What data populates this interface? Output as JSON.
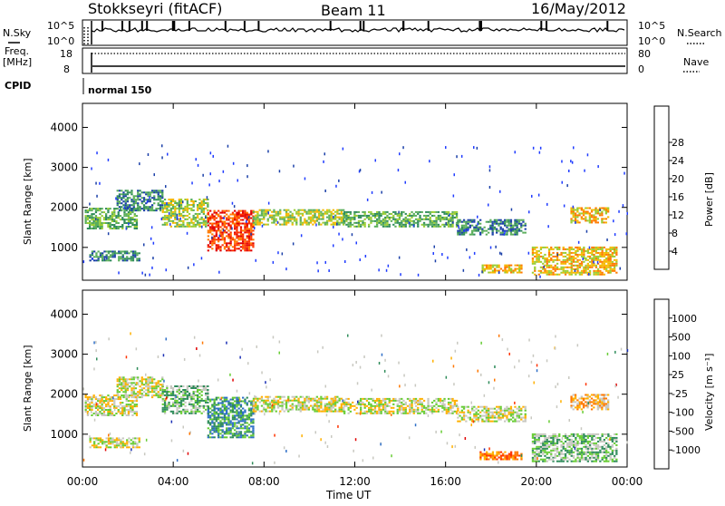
{
  "header": {
    "station": "Stokkseyri (fitACF)",
    "beam": "Beam 11",
    "date": "16/May/2012"
  },
  "top_panels": {
    "nsky_label": "N.Sky",
    "nsky_ticks": [
      "10^5",
      "10^0"
    ],
    "nsearch_label": "N.Search",
    "nsearch_ticks": [
      "10^5",
      "10^0"
    ],
    "freq_label": "Freq.",
    "freq_unit": "[MHz]",
    "freq_ticks": [
      "18",
      "8"
    ],
    "nave_label": "Nave",
    "nave_ticks": [
      "80",
      "0"
    ],
    "cpid_label": "CPID",
    "cpid_value": "normal 150"
  },
  "chart_data": [
    {
      "type": "heatmap",
      "title": "",
      "ylabel": "Slant Range [km]",
      "xlabel": "",
      "x_ticks": [
        "00:00",
        "04:00",
        "08:00",
        "12:00",
        "16:00",
        "20:00",
        "00:00"
      ],
      "x_range_hours": [
        0,
        24
      ],
      "y_ticks": [
        "1000",
        "2000",
        "3000",
        "4000"
      ],
      "y_range_km": [
        180,
        4600
      ],
      "colorbar": {
        "label": "Power [dB]",
        "ticks": [
          "4",
          "8",
          "12",
          "16",
          "20",
          "24",
          "28"
        ],
        "range": [
          0,
          30
        ],
        "colors": [
          "#1f3bff",
          "#1a3fa8",
          "#2f8c5a",
          "#5aae5a",
          "#9acd32",
          "#f5b800",
          "#ff7a00",
          "#ff3300",
          "#e00000"
        ]
      },
      "echo_bands": [
        {
          "t0": 0.1,
          "t1": 2.4,
          "r0": 1450,
          "r1": 1950,
          "level": 3
        },
        {
          "t0": 1.5,
          "t1": 3.5,
          "r0": 1900,
          "r1": 2400,
          "level": 2
        },
        {
          "t0": 3.5,
          "t1": 5.5,
          "r0": 1500,
          "r1": 2200,
          "level": 4
        },
        {
          "t0": 5.5,
          "t1": 7.5,
          "r0": 900,
          "r1": 1900,
          "level": 7
        },
        {
          "t0": 7.5,
          "t1": 11.5,
          "r0": 1550,
          "r1": 1950,
          "level": 4
        },
        {
          "t0": 11.5,
          "t1": 16.5,
          "r0": 1500,
          "r1": 1900,
          "level": 3
        },
        {
          "t0": 16.5,
          "t1": 19.5,
          "r0": 1300,
          "r1": 1700,
          "level": 2
        },
        {
          "t0": 17.5,
          "t1": 19.3,
          "r0": 350,
          "r1": 550,
          "level": 5
        },
        {
          "t0": 19.8,
          "t1": 23.5,
          "r0": 300,
          "r1": 1000,
          "level": 5
        },
        {
          "t0": 21.5,
          "t1": 23.2,
          "r0": 1600,
          "r1": 2000,
          "level": 5
        },
        {
          "t0": 0.3,
          "t1": 2.5,
          "r0": 650,
          "r1": 900,
          "level": 2
        }
      ]
    },
    {
      "type": "heatmap",
      "title": "",
      "ylabel": "Slant Range [km]",
      "xlabel": "Time UT",
      "x_ticks": [
        "00:00",
        "04:00",
        "08:00",
        "12:00",
        "16:00",
        "20:00",
        "00:00"
      ],
      "x_range_hours": [
        0,
        24
      ],
      "y_ticks": [
        "1000",
        "2000",
        "3000",
        "4000"
      ],
      "y_range_km": [
        180,
        4600
      ],
      "colorbar": {
        "label": "Velocity [m s⁻¹]",
        "ticks": [
          "1000",
          "500",
          "100",
          "25",
          "-25",
          "-100",
          "-500",
          "-1000"
        ],
        "colors": [
          "#1a2fb5",
          "#2e6fc8",
          "#2e8c5a",
          "#66cc33",
          "#c8c8c0",
          "#ffb000",
          "#ff7700",
          "#ff3300",
          "#e00000"
        ]
      },
      "echo_bands": [
        {
          "t0": 0.1,
          "t1": 2.4,
          "r0": 1450,
          "r1": 1950,
          "level": 4
        },
        {
          "t0": 1.5,
          "t1": 3.5,
          "r0": 1900,
          "r1": 2400,
          "level": 4
        },
        {
          "t0": 3.5,
          "t1": 5.5,
          "r0": 1500,
          "r1": 2200,
          "level": 3
        },
        {
          "t0": 5.5,
          "t1": 7.5,
          "r0": 900,
          "r1": 1900,
          "level": 2
        },
        {
          "t0": 7.5,
          "t1": 11.5,
          "r0": 1550,
          "r1": 1950,
          "level": 4
        },
        {
          "t0": 11.5,
          "t1": 16.5,
          "r0": 1500,
          "r1": 1900,
          "level": 4
        },
        {
          "t0": 16.5,
          "t1": 19.5,
          "r0": 1300,
          "r1": 1700,
          "level": 4
        },
        {
          "t0": 17.5,
          "t1": 19.3,
          "r0": 350,
          "r1": 550,
          "level": 6
        },
        {
          "t0": 19.8,
          "t1": 23.5,
          "r0": 300,
          "r1": 1000,
          "level": 3
        },
        {
          "t0": 21.5,
          "t1": 23.2,
          "r0": 1600,
          "r1": 2000,
          "level": 5
        },
        {
          "t0": 0.3,
          "t1": 2.5,
          "r0": 650,
          "r1": 900,
          "level": 4
        }
      ]
    }
  ]
}
